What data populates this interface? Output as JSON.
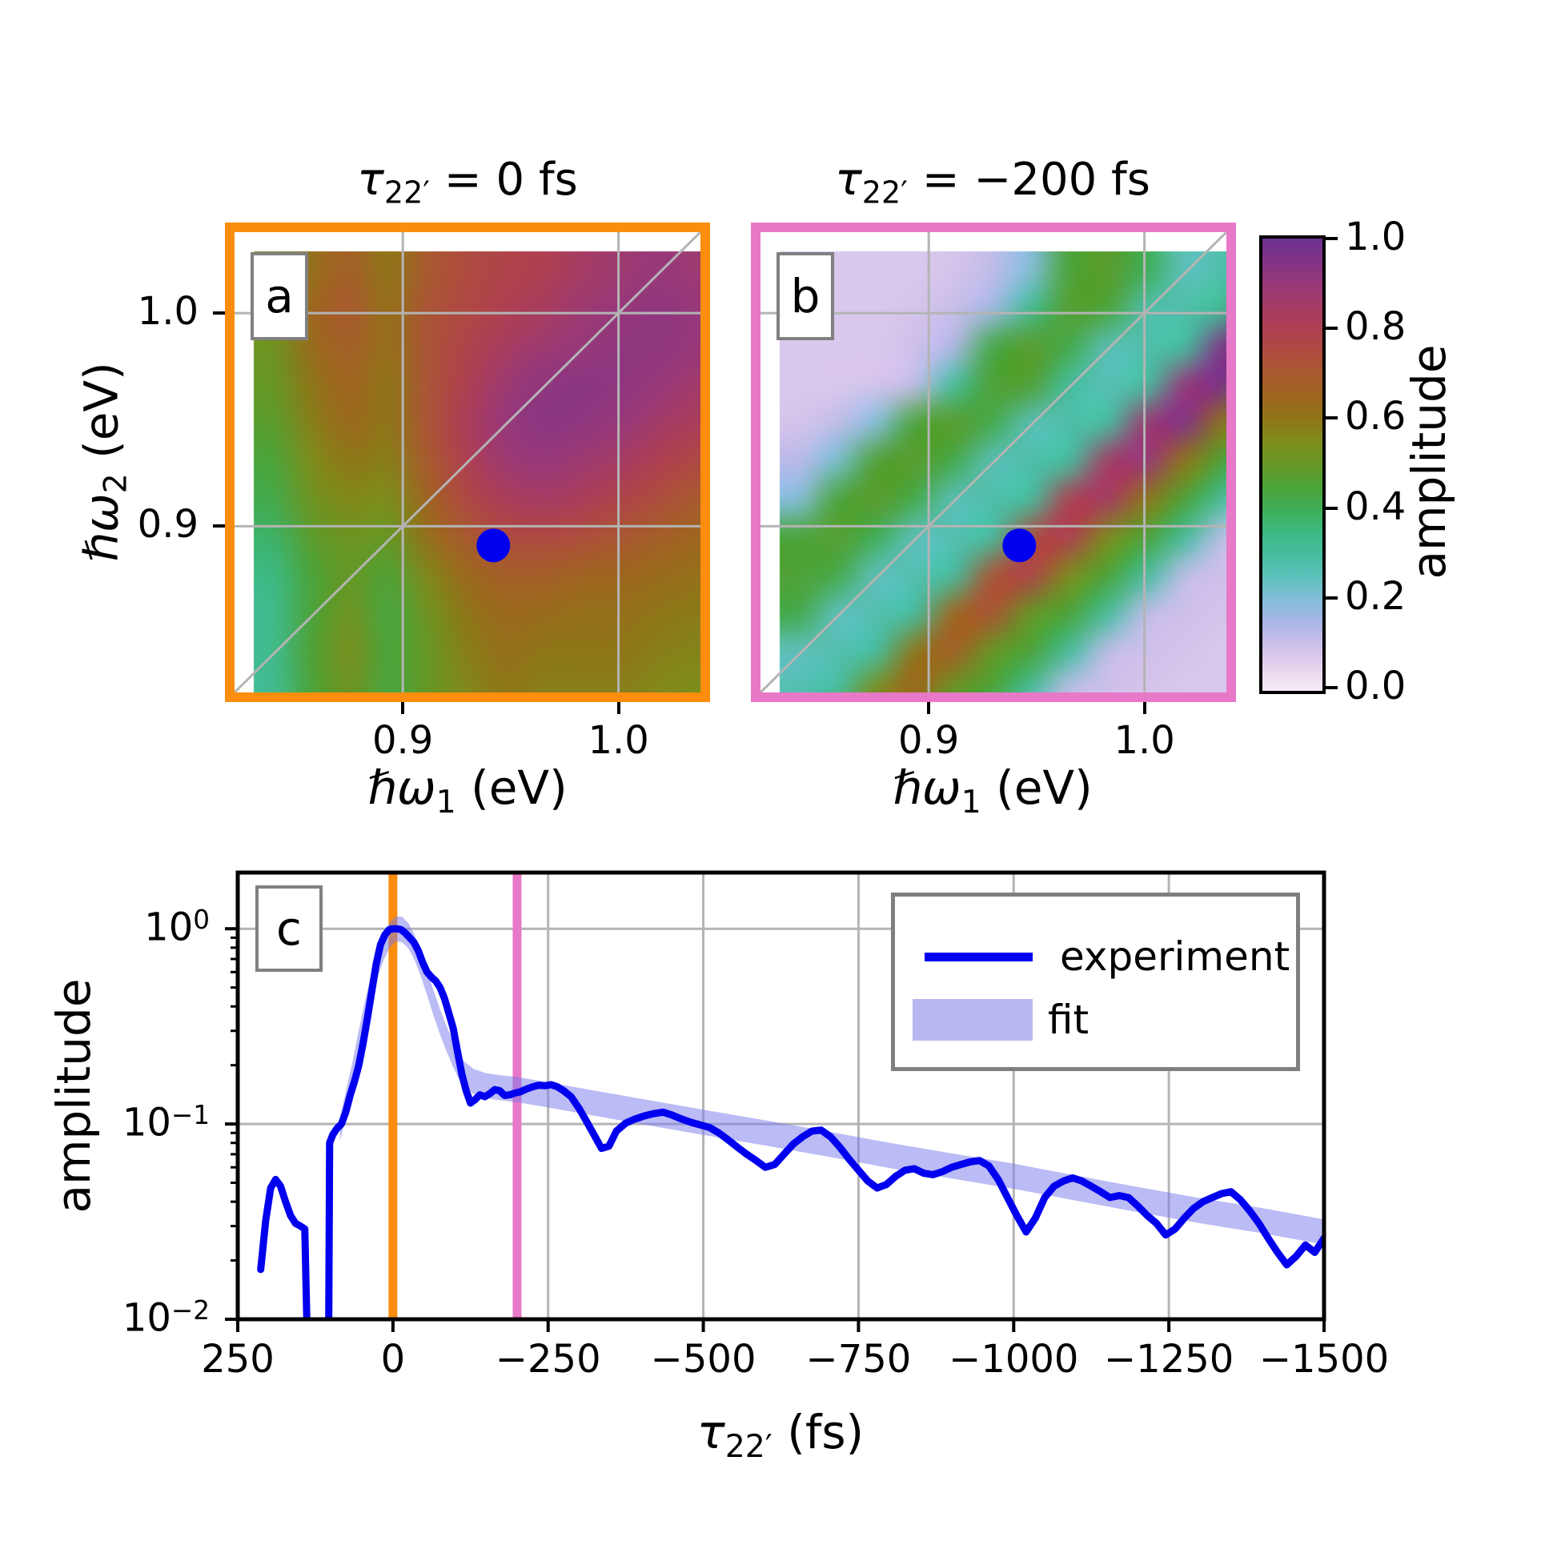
{
  "figure": {
    "background": "#ffffff"
  },
  "colors": {
    "experiment_line": "#0000ee",
    "fit_band": "#b7b7f3",
    "fit_band_fill": "rgba(120,120,235,0.5)",
    "orange_marker_line": "#fb8d0e",
    "pink_marker_line": "#e878c8",
    "grid": "#b4b4b4",
    "frame_c": "#000000",
    "label_box_border": "#808080",
    "dot": "#0000ee"
  },
  "colormap": {
    "stops": [
      [
        0.0,
        "#f5ecf5"
      ],
      [
        0.05,
        "#e6d4ee"
      ],
      [
        0.1,
        "#cfc0ea"
      ],
      [
        0.15,
        "#aab5e6"
      ],
      [
        0.2,
        "#84bdd9"
      ],
      [
        0.25,
        "#5fc0bd"
      ],
      [
        0.3,
        "#46bd9e"
      ],
      [
        0.35,
        "#3cb983"
      ],
      [
        0.4,
        "#3fae58"
      ],
      [
        0.45,
        "#4ba43a"
      ],
      [
        0.5,
        "#669724"
      ],
      [
        0.55,
        "#7d8d1c"
      ],
      [
        0.6,
        "#8f7618"
      ],
      [
        0.65,
        "#9e661e"
      ],
      [
        0.7,
        "#a85a2f"
      ],
      [
        0.75,
        "#ae4b3f"
      ],
      [
        0.8,
        "#ae4051"
      ],
      [
        0.85,
        "#a53c64"
      ],
      [
        0.9,
        "#98387a"
      ],
      [
        0.95,
        "#823386"
      ],
      [
        1.0,
        "#6a3190"
      ]
    ]
  },
  "panel_a": {
    "letter": "a",
    "title_tau": "τ",
    "title_sub": "22′",
    "title_rest": " = 0 fs"
  },
  "panel_b": {
    "letter": "b",
    "title_tau": "τ",
    "title_sub": "22′",
    "title_rest": " = −200 fs"
  },
  "panel_c": {
    "letter": "c",
    "xlabel_tau": "τ",
    "xlabel_sub": "22′",
    "xlabel_rest": " (fs)",
    "ylabel": "amplitude"
  },
  "axes_ab": {
    "ylabel_hw": "ℏω",
    "ylabel_sub": "2",
    "ylabel_rest": " (eV)",
    "xlabel_hw": "ℏω",
    "xlabel_sub": "1",
    "xlabel_rest": " (eV)",
    "xticks": [
      {
        "v": 0.9,
        "label": "0.9"
      },
      {
        "v": 1.0,
        "label": "1.0"
      }
    ],
    "yticks": [
      {
        "v": 1.0,
        "label": "1.0"
      },
      {
        "v": 0.9,
        "label": "0.9"
      }
    ]
  },
  "colorbar": {
    "label": "amplitude",
    "ticks": [
      {
        "v": 1.0,
        "label": "1.0"
      },
      {
        "v": 0.8,
        "label": "0.8"
      },
      {
        "v": 0.6,
        "label": "0.6"
      },
      {
        "v": 0.4,
        "label": "0.4"
      },
      {
        "v": 0.2,
        "label": "0.2"
      },
      {
        "v": 0.0,
        "label": "0.0"
      }
    ]
  },
  "legend": {
    "items": [
      {
        "label": "experiment"
      },
      {
        "label": "fit"
      }
    ]
  },
  "chart_data": [
    {
      "id": "a",
      "type": "heatmap",
      "title": "τ22′ = 0 fs",
      "xlabel": "ℏω1 (eV)",
      "ylabel": "ℏω2 (eV)",
      "xlim": [
        0.822,
        1.038
      ],
      "ylim": [
        0.822,
        1.038
      ],
      "xticks": [
        0.9,
        1.0
      ],
      "yticks": [
        0.9,
        1.0
      ],
      "frame_color": "#fb8d0e",
      "diagonal": true,
      "marker": {
        "x": 0.942,
        "y": 0.891
      },
      "x": [
        0.822,
        0.84,
        0.858,
        0.876,
        0.894,
        0.912,
        0.93,
        0.948,
        0.966,
        0.984,
        1.002,
        1.02,
        1.038
      ],
      "y_top_to_bottom": [
        1.038,
        1.02,
        1.002,
        0.984,
        0.966,
        0.948,
        0.93,
        0.912,
        0.894,
        0.876,
        0.858,
        0.84,
        0.822
      ],
      "values": [
        [
          0.52,
          0.62,
          0.68,
          0.6,
          0.7,
          0.75,
          0.78,
          0.8,
          0.85,
          0.88,
          0.9,
          0.88,
          0.86
        ],
        [
          0.55,
          0.65,
          0.7,
          0.62,
          0.72,
          0.76,
          0.8,
          0.84,
          0.88,
          0.9,
          0.92,
          0.9,
          0.87
        ],
        [
          0.52,
          0.63,
          0.68,
          0.62,
          0.72,
          0.78,
          0.84,
          0.88,
          0.9,
          0.92,
          0.92,
          0.9,
          0.86
        ],
        [
          0.5,
          0.6,
          0.66,
          0.6,
          0.72,
          0.8,
          0.88,
          0.92,
          0.93,
          0.92,
          0.9,
          0.86,
          0.82
        ],
        [
          0.48,
          0.58,
          0.64,
          0.6,
          0.72,
          0.82,
          0.9,
          0.93,
          0.92,
          0.9,
          0.86,
          0.82,
          0.78
        ],
        [
          0.45,
          0.55,
          0.6,
          0.58,
          0.7,
          0.8,
          0.88,
          0.9,
          0.88,
          0.85,
          0.8,
          0.76,
          0.73
        ],
        [
          0.42,
          0.52,
          0.56,
          0.55,
          0.66,
          0.76,
          0.82,
          0.85,
          0.82,
          0.78,
          0.74,
          0.7,
          0.68
        ],
        [
          0.38,
          0.48,
          0.52,
          0.5,
          0.62,
          0.7,
          0.75,
          0.76,
          0.74,
          0.71,
          0.68,
          0.65,
          0.64
        ],
        [
          0.35,
          0.45,
          0.5,
          0.46,
          0.56,
          0.64,
          0.68,
          0.68,
          0.66,
          0.65,
          0.63,
          0.62,
          0.61
        ],
        [
          0.33,
          0.45,
          0.52,
          0.44,
          0.52,
          0.6,
          0.64,
          0.63,
          0.62,
          0.62,
          0.6,
          0.59,
          0.58
        ],
        [
          0.33,
          0.46,
          0.54,
          0.45,
          0.5,
          0.58,
          0.62,
          0.6,
          0.6,
          0.6,
          0.58,
          0.57,
          0.56
        ],
        [
          0.32,
          0.45,
          0.52,
          0.44,
          0.5,
          0.56,
          0.6,
          0.58,
          0.58,
          0.58,
          0.56,
          0.55,
          0.55
        ],
        [
          0.3,
          0.44,
          0.5,
          0.43,
          0.48,
          0.55,
          0.58,
          0.56,
          0.56,
          0.57,
          0.55,
          0.54,
          0.53
        ]
      ]
    },
    {
      "id": "b",
      "type": "heatmap",
      "title": "τ22′ = −200 fs",
      "xlabel": "ℏω1 (eV)",
      "ylabel": "ℏω2 (eV)",
      "xlim": [
        0.822,
        1.038
      ],
      "ylim": [
        0.822,
        1.038
      ],
      "xticks": [
        0.9,
        1.0
      ],
      "yticks": [
        0.9,
        1.0
      ],
      "frame_color": "#e878c8",
      "diagonal": true,
      "marker": {
        "x": 0.942,
        "y": 0.891
      },
      "x": [
        0.822,
        0.84,
        0.858,
        0.876,
        0.894,
        0.912,
        0.93,
        0.948,
        0.966,
        0.984,
        1.002,
        1.02,
        1.038
      ],
      "y_top_to_bottom": [
        1.038,
        1.02,
        1.002,
        0.984,
        0.966,
        0.948,
        0.93,
        0.912,
        0.894,
        0.876,
        0.858,
        0.84,
        0.822
      ],
      "values": [
        [
          0.08,
          0.08,
          0.08,
          0.08,
          0.09,
          0.12,
          0.2,
          0.45,
          0.48,
          0.4,
          0.25,
          0.28,
          0.3
        ],
        [
          0.08,
          0.08,
          0.08,
          0.09,
          0.11,
          0.16,
          0.32,
          0.47,
          0.45,
          0.28,
          0.28,
          0.32,
          0.9
        ],
        [
          0.08,
          0.08,
          0.08,
          0.1,
          0.14,
          0.42,
          0.48,
          0.42,
          0.26,
          0.28,
          0.3,
          0.95,
          0.97
        ],
        [
          0.08,
          0.08,
          0.09,
          0.12,
          0.3,
          0.46,
          0.46,
          0.3,
          0.26,
          0.3,
          0.9,
          0.97,
          0.55
        ],
        [
          0.09,
          0.12,
          0.2,
          0.45,
          0.48,
          0.42,
          0.26,
          0.28,
          0.3,
          0.88,
          0.95,
          0.6,
          0.45
        ],
        [
          0.13,
          0.22,
          0.46,
          0.48,
          0.42,
          0.26,
          0.28,
          0.3,
          0.85,
          0.9,
          0.6,
          0.45,
          0.3
        ],
        [
          0.2,
          0.45,
          0.48,
          0.42,
          0.26,
          0.28,
          0.3,
          0.8,
          0.85,
          0.6,
          0.45,
          0.3,
          0.12
        ],
        [
          0.45,
          0.47,
          0.4,
          0.25,
          0.27,
          0.3,
          0.75,
          0.8,
          0.55,
          0.45,
          0.3,
          0.12,
          0.1
        ],
        [
          0.46,
          0.42,
          0.25,
          0.27,
          0.3,
          0.72,
          0.78,
          0.55,
          0.45,
          0.3,
          0.12,
          0.1,
          0.08
        ],
        [
          0.42,
          0.25,
          0.27,
          0.3,
          0.65,
          0.72,
          0.5,
          0.45,
          0.3,
          0.12,
          0.1,
          0.09,
          0.08
        ],
        [
          0.25,
          0.27,
          0.3,
          0.6,
          0.68,
          0.5,
          0.45,
          0.3,
          0.12,
          0.1,
          0.09,
          0.08,
          0.08
        ],
        [
          0.27,
          0.3,
          0.55,
          0.65,
          0.5,
          0.45,
          0.3,
          0.12,
          0.1,
          0.09,
          0.08,
          0.08,
          0.08
        ],
        [
          0.3,
          0.5,
          0.6,
          0.5,
          0.42,
          0.3,
          0.12,
          0.1,
          0.09,
          0.08,
          0.08,
          0.08,
          0.08
        ]
      ]
    },
    {
      "id": "c",
      "type": "line",
      "xlabel": "τ22′ (fs)",
      "ylabel": "amplitude",
      "xlim": [
        250,
        -1500
      ],
      "ylim": [
        0.01,
        1.94
      ],
      "yscale": "log",
      "grid": true,
      "xticks": [
        {
          "v": 250,
          "label": "250"
        },
        {
          "v": 0,
          "label": "0"
        },
        {
          "v": -250,
          "label": "−250"
        },
        {
          "v": -500,
          "label": "−500"
        },
        {
          "v": -750,
          "label": "−750"
        },
        {
          "v": -1000,
          "label": "−1000"
        },
        {
          "v": -1250,
          "label": "−1250"
        },
        {
          "v": -1500,
          "label": "−1500"
        }
      ],
      "yticks": [
        {
          "v": 1,
          "base": "10",
          "exp": "0"
        },
        {
          "v": 0.1,
          "base": "10",
          "exp": "−1"
        },
        {
          "v": 0.01,
          "base": "10",
          "exp": "−2"
        }
      ],
      "vlines": [
        {
          "x": 0,
          "color": "#fb8d0e"
        },
        {
          "x": -200,
          "color": "#e878c8"
        }
      ],
      "series": [
        {
          "name": "experiment",
          "type": "line",
          "color": "#0000ee",
          "x": [
            213,
            205,
            197,
            189,
            181,
            173,
            165,
            157,
            149,
            142,
            136,
            104,
            102,
            97,
            90,
            83,
            76,
            69,
            62,
            55,
            48,
            41,
            34,
            27,
            20,
            13,
            6,
            0,
            -6,
            -13,
            -20,
            -27,
            -34,
            -41,
            -48,
            -55,
            -62,
            -69,
            -76,
            -83,
            -90,
            -97,
            -104,
            -111,
            -118,
            -125,
            -132,
            -140,
            -148,
            -156,
            -164,
            -172,
            -180,
            -188,
            -196,
            -205,
            -215,
            -225,
            -235,
            -245,
            -255,
            -265,
            -275,
            -287,
            -300,
            -312,
            -324,
            -336,
            -348,
            -360,
            -375,
            -390,
            -405,
            -420,
            -435,
            -450,
            -465,
            -480,
            -495,
            -510,
            -525,
            -540,
            -555,
            -570,
            -585,
            -600,
            -615,
            -630,
            -645,
            -660,
            -675,
            -690,
            -705,
            -720,
            -735,
            -750,
            -765,
            -780,
            -795,
            -810,
            -825,
            -840,
            -855,
            -870,
            -885,
            -900,
            -915,
            -930,
            -945,
            -960,
            -975,
            -990,
            -1005,
            -1020,
            -1035,
            -1050,
            -1065,
            -1080,
            -1095,
            -1110,
            -1125,
            -1140,
            -1155,
            -1170,
            -1185,
            -1200,
            -1215,
            -1230,
            -1245,
            -1260,
            -1275,
            -1290,
            -1305,
            -1320,
            -1335,
            -1350,
            -1365,
            -1380,
            -1395,
            -1410,
            -1425,
            -1440,
            -1455,
            -1470,
            -1485,
            -1500
          ],
          "y": [
            0.018,
            0.032,
            0.047,
            0.052,
            0.048,
            0.04,
            0.034,
            0.031,
            0.03,
            0.029,
            0.004,
            0.004,
            0.08,
            0.088,
            0.095,
            0.1,
            0.115,
            0.14,
            0.165,
            0.2,
            0.26,
            0.35,
            0.48,
            0.66,
            0.83,
            0.93,
            0.99,
            1.0,
            1.0,
            0.99,
            0.95,
            0.9,
            0.85,
            0.77,
            0.67,
            0.6,
            0.565,
            0.54,
            0.5,
            0.44,
            0.37,
            0.31,
            0.235,
            0.18,
            0.148,
            0.128,
            0.133,
            0.141,
            0.138,
            0.143,
            0.15,
            0.148,
            0.14,
            0.141,
            0.144,
            0.146,
            0.151,
            0.155,
            0.158,
            0.157,
            0.159,
            0.155,
            0.148,
            0.138,
            0.12,
            0.103,
            0.088,
            0.075,
            0.077,
            0.092,
            0.101,
            0.106,
            0.11,
            0.113,
            0.115,
            0.111,
            0.106,
            0.102,
            0.099,
            0.096,
            0.09,
            0.083,
            0.076,
            0.07,
            0.065,
            0.06,
            0.062,
            0.07,
            0.079,
            0.086,
            0.092,
            0.093,
            0.086,
            0.076,
            0.066,
            0.058,
            0.051,
            0.047,
            0.049,
            0.054,
            0.058,
            0.059,
            0.056,
            0.055,
            0.057,
            0.06,
            0.062,
            0.064,
            0.065,
            0.061,
            0.052,
            0.042,
            0.034,
            0.028,
            0.033,
            0.042,
            0.048,
            0.051,
            0.053,
            0.051,
            0.048,
            0.045,
            0.042,
            0.043,
            0.042,
            0.038,
            0.034,
            0.031,
            0.027,
            0.029,
            0.033,
            0.037,
            0.04,
            0.042,
            0.044,
            0.045,
            0.041,
            0.036,
            0.031,
            0.026,
            0.022,
            0.019,
            0.021,
            0.024,
            0.022,
            0.026
          ]
        },
        {
          "name": "fit",
          "type": "band",
          "color": "#b7b7f3",
          "band_factor": 1.16,
          "x": [
            85,
            75,
            65,
            55,
            45,
            35,
            25,
            15,
            5,
            -5,
            -15,
            -25,
            -35,
            -45,
            -55,
            -65,
            -75,
            -85,
            -95,
            -105,
            -115,
            -130,
            -150,
            -175,
            -200,
            -250,
            -300,
            -400,
            -500,
            -600,
            -700,
            -800,
            -900,
            -1000,
            -1100,
            -1200,
            -1300,
            -1400,
            -1500
          ],
          "y": [
            0.095,
            0.13,
            0.18,
            0.26,
            0.37,
            0.5,
            0.65,
            0.8,
            0.93,
            1.0,
            0.99,
            0.92,
            0.8,
            0.66,
            0.53,
            0.42,
            0.34,
            0.28,
            0.235,
            0.2,
            0.18,
            0.165,
            0.157,
            0.153,
            0.15,
            0.141,
            0.132,
            0.116,
            0.102,
            0.09,
            0.079,
            0.069,
            0.061,
            0.054,
            0.047,
            0.041,
            0.036,
            0.032,
            0.028
          ]
        }
      ],
      "legend": {
        "position": "upper right",
        "entries": [
          "experiment",
          "fit"
        ]
      }
    }
  ]
}
